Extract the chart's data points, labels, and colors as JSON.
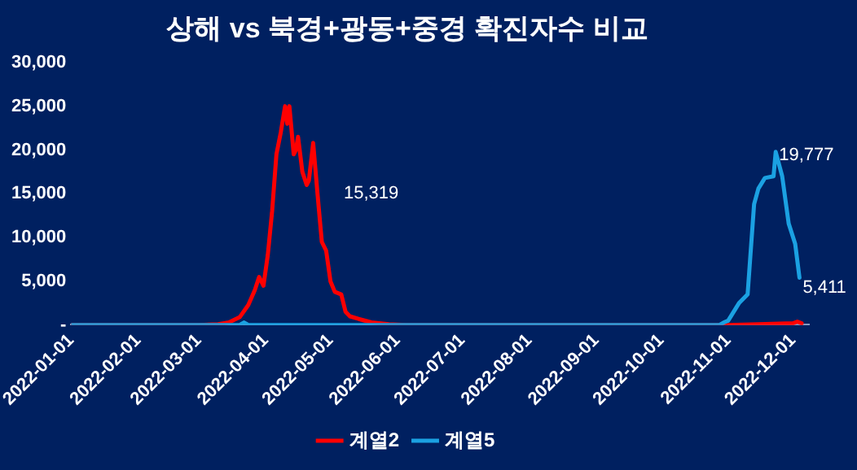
{
  "chart_data": {
    "type": "line",
    "title": "상해 vs 북경+광동+중경 확진자수 비교",
    "series": [
      {
        "name": "계열2",
        "color": "#ff0000",
        "x": [
          "2022-01-01",
          "2022-03-01",
          "2022-03-10",
          "2022-03-15",
          "2022-03-20",
          "2022-03-24",
          "2022-03-27",
          "2022-03-29",
          "2022-03-31",
          "2022-04-02",
          "2022-04-04",
          "2022-04-06",
          "2022-04-08",
          "2022-04-10",
          "2022-04-11",
          "2022-04-12",
          "2022-04-14",
          "2022-04-15",
          "2022-04-16",
          "2022-04-18",
          "2022-04-20",
          "2022-04-21",
          "2022-04-23",
          "2022-04-25",
          "2022-04-27",
          "2022-04-29",
          "2022-05-01",
          "2022-05-03",
          "2022-05-06",
          "2022-05-08",
          "2022-05-10",
          "2022-05-14",
          "2022-05-20",
          "2022-05-28",
          "2022-06-05",
          "2022-11-01",
          "2022-11-15",
          "2022-12-01",
          "2022-12-03",
          "2022-12-05"
        ],
        "values": [
          0,
          0,
          100,
          300,
          900,
          2300,
          4000,
          5500,
          4500,
          8000,
          13000,
          19500,
          22000,
          25000,
          23000,
          25000,
          19500,
          20000,
          21500,
          17500,
          16000,
          16500,
          20800,
          15000,
          9500,
          8500,
          5000,
          3800,
          3500,
          1500,
          1000,
          700,
          300,
          100,
          0,
          0,
          100,
          200,
          400,
          200
        ]
      },
      {
        "name": "계열5",
        "color": "#1ba1e2",
        "x": [
          "2022-01-01",
          "2022-03-20",
          "2022-03-22",
          "2022-03-24",
          "2022-10-28",
          "2022-10-30",
          "2022-11-01",
          "2022-11-06",
          "2022-11-10",
          "2022-11-13",
          "2022-11-15",
          "2022-11-18",
          "2022-11-22",
          "2022-11-23",
          "2022-11-26",
          "2022-11-29",
          "2022-12-02",
          "2022-12-04"
        ],
        "values": [
          0,
          0,
          300,
          0,
          0,
          300,
          500,
          2500,
          3500,
          13800,
          15600,
          16800,
          17000,
          19777,
          17000,
          11600,
          9300,
          5411
        ]
      }
    ],
    "ylim": [
      0,
      30000
    ],
    "yticks": [
      {
        "value": 0,
        "label": "-"
      },
      {
        "value": 5000,
        "label": "5,000"
      },
      {
        "value": 10000,
        "label": "10,000"
      },
      {
        "value": 15000,
        "label": "15,000"
      },
      {
        "value": 20000,
        "label": "20,000"
      },
      {
        "value": 25000,
        "label": "25,000"
      },
      {
        "value": 30000,
        "label": "30,000"
      }
    ],
    "xlim": [
      "2022-01-01",
      "2022-12-08"
    ],
    "xticks": [
      "2022-01-01",
      "2022-02-01",
      "2022-03-01",
      "2022-04-01",
      "2022-05-01",
      "2022-06-01",
      "2022-07-01",
      "2022-08-01",
      "2022-09-01",
      "2022-10-01",
      "2022-11-01",
      "2022-12-01"
    ],
    "annotations": [
      "15,319",
      {
        "text": "19,777",
        "x": "2022-11-23",
        "y": 19777
      },
      {
        "text": "5,411",
        "x": "2022-12-04",
        "y": 5411
      }
    ],
    "grid": false,
    "legend": "bottom",
    "marker": "none",
    "line_style": "solid"
  }
}
